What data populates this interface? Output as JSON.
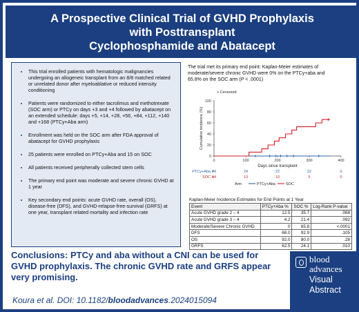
{
  "header": {
    "title_lines": [
      "A Prospective Clinical Trial of GVHD Prophylaxis",
      "with Posttransplant",
      "Cyclophosphamide and Abatacept"
    ]
  },
  "bullets": [
    "This trial enrolled patients with hematologic malignancies undergoing an allogeneic transplant from an 8/8 matched related or unrelated donor after myeloablative or reduced intensity conditioning",
    "Patients were randomized to either tacrolimus and methotrexate (SOC arm) or PTCy on days +3 and +4 followed by abatacept on an extended schedule: days +5, +14, +28, +56, +84, +112, +140 and +168 (PTCy+Aba arm)",
    "Enrollment was held on the SOC arm after FDA approval of abatacept for GVHD prophylaxis",
    "25 patients were enrolled on PTCy+Aba and 15 on SOC",
    "All patients received peripherally collected stem cells",
    "The primary end point was moderate and severe chronic GVHD at 1 year",
    "Key secondary end points: acute GVHD rate, overall (OS), disease-free (DFS), and GVHD-relapse-free-survival (GRFS) at one year, transplant related mortality and infection rate"
  ],
  "result_text": {
    "line1": "The trial met its primary end point: Kaplan-Meier estimates of",
    "line2": "moderate/severe chronic GVHD were 0% on the PTCy+aba and",
    "line3_pre": "65.8% on the SOC arm (",
    "line3_p": "P",
    "line3_post": " < .0001)"
  },
  "chart_data": {
    "type": "line",
    "xlabel": "Days since transplant",
    "ylabel": "Cumulative incidence (%)",
    "xlim": [
      0,
      400
    ],
    "ylim": [
      0,
      100
    ],
    "x_ticks": [
      0,
      100,
      200,
      300,
      400
    ],
    "y_ticks": [
      0,
      20,
      40,
      60,
      80,
      100
    ],
    "censored_label": "+ Censored",
    "legend_title": "Arm",
    "series": [
      {
        "name": "PTCy+Aba",
        "color": "#2e5fa8",
        "steps": [
          [
            0,
            0
          ],
          [
            365,
            0
          ]
        ],
        "censor_x": [
          130,
          175,
          195,
          210,
          230,
          250,
          330
        ]
      },
      {
        "name": "SOC",
        "color": "#d21f26",
        "steps": [
          [
            0,
            0
          ],
          [
            110,
            0
          ],
          [
            110,
            7
          ],
          [
            150,
            7
          ],
          [
            150,
            13
          ],
          [
            170,
            13
          ],
          [
            170,
            20
          ],
          [
            190,
            20
          ],
          [
            190,
            27
          ],
          [
            205,
            27
          ],
          [
            205,
            33
          ],
          [
            225,
            33
          ],
          [
            225,
            40
          ],
          [
            245,
            40
          ],
          [
            245,
            47
          ],
          [
            260,
            47
          ],
          [
            260,
            53
          ],
          [
            320,
            53
          ],
          [
            320,
            60
          ],
          [
            340,
            60
          ],
          [
            340,
            66
          ],
          [
            365,
            66
          ]
        ],
        "censor_x": [
          360
        ]
      }
    ],
    "risk_table": {
      "times": [
        0,
        100,
        200,
        300,
        400
      ],
      "rows": [
        {
          "name": "PTCy+Aba",
          "values": [
            "24",
            "24",
            "22",
            "22",
            "0"
          ]
        },
        {
          "name": "SOC",
          "values": [
            "14",
            "13",
            "10",
            "5",
            "0"
          ]
        }
      ]
    }
  },
  "table": {
    "title": "Kaplan-Meier Incidence Estimates for End Points at 1 Year",
    "headers": [
      "Event",
      "PTCy+Aba %",
      "SOC %",
      "Log-Rank P-value"
    ],
    "rows": [
      [
        "Acute GVHD grade 2 – 4",
        "12.5",
        "35.7",
        ".068"
      ],
      [
        "Acute GVHD grade 3 – 4",
        "4.2",
        "21.4",
        ".092"
      ],
      [
        "Moderate/Severe Chronic GVHD",
        "0",
        "65.8",
        "<.0001"
      ],
      [
        "DFS",
        "68.0",
        "92.9",
        ".105"
      ],
      [
        "OS",
        "92.0",
        "80.0",
        ".28"
      ],
      [
        "GRFS",
        "62.5",
        "24.1",
        ".010"
      ]
    ]
  },
  "conclusion": {
    "label": "Conclusions:",
    "text": " PTCy and aba without a CNI can be used for GVHD prophylaxis. The chronic GVHD rate and GRFS appear very promising."
  },
  "citation": {
    "prefix": "Koura et al. DOI: 10.1182/",
    "journal": "bloodadvances",
    "suffix": ".2024015094"
  },
  "logo": {
    "line1": "blood",
    "line2": "advances",
    "line3": "Visual",
    "line4": "Abstract"
  },
  "colors": {
    "brand_navy": "#1b3f80",
    "panel_bg": "#e4eaf4",
    "ptcy_blue": "#2e5fa8",
    "soc_red": "#d21f26"
  }
}
